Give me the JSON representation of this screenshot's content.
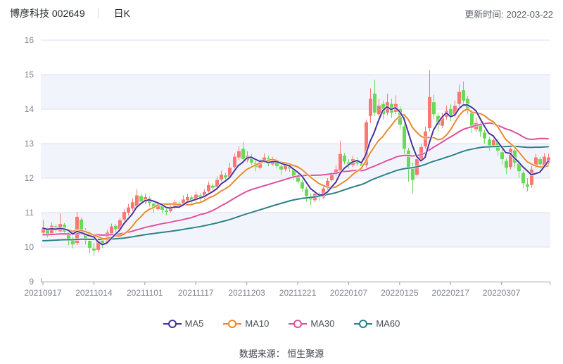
{
  "header": {
    "title": "博彦科技 002649",
    "period": "日K",
    "updated": "更新时间: 2022-03-22"
  },
  "footer": {
    "source": "数据来源： 恒生聚源"
  },
  "legend": [
    {
      "label": "MA5",
      "color": "#462f9e",
      "window": 5
    },
    {
      "label": "MA10",
      "color": "#e78930",
      "window": 10
    },
    {
      "label": "MA30",
      "color": "#dc4f9e",
      "window": 30
    },
    {
      "label": "MA60",
      "color": "#2a7f88",
      "window": 60
    }
  ],
  "chart_data": {
    "type": "candlestick",
    "title": "博彦科技 002649 日K",
    "ylim": [
      9,
      16
    ],
    "yticks": [
      9,
      10,
      11,
      12,
      13,
      14,
      15,
      16
    ],
    "xtick_indices": [
      0,
      12,
      24,
      36,
      48,
      60,
      72,
      84,
      96,
      108
    ],
    "xtick_labels": [
      "20210917",
      "20211014",
      "20211101",
      "20211117",
      "20211203",
      "20211221",
      "20220107",
      "20220125",
      "20220217",
      "20220307"
    ],
    "colors": {
      "up": "#fa7873",
      "down": "#69da55",
      "grid": "#dce1f0",
      "band": "#f2f4fb",
      "axis": "#999da4",
      "label": "#7e8494"
    },
    "ma_seed": {
      "MA30": 10.35,
      "MA60": 10.18
    },
    "candles_format": [
      "date",
      "open",
      "high",
      "low",
      "close"
    ],
    "candles": [
      [
        "20210917",
        10.42,
        10.78,
        10.35,
        10.55
      ],
      [
        "20210922",
        10.52,
        10.58,
        10.28,
        10.38
      ],
      [
        "20210923",
        10.36,
        10.72,
        10.32,
        10.62
      ],
      [
        "20210924",
        10.6,
        10.66,
        10.42,
        10.5
      ],
      [
        "20210927",
        10.46,
        10.98,
        10.42,
        10.67
      ],
      [
        "20210928",
        10.65,
        10.7,
        10.38,
        10.45
      ],
      [
        "20210929",
        10.42,
        10.48,
        10.05,
        10.2
      ],
      [
        "20210930",
        10.22,
        10.3,
        9.96,
        10.08
      ],
      [
        "20211008",
        10.12,
        11.02,
        10.06,
        10.88
      ],
      [
        "20211011",
        10.8,
        10.85,
        10.42,
        10.5
      ],
      [
        "20211012",
        10.48,
        10.55,
        10.08,
        10.2
      ],
      [
        "20211013",
        10.18,
        10.25,
        9.82,
        9.98
      ],
      [
        "20211014",
        9.96,
        10.12,
        9.75,
        9.9
      ],
      [
        "20211015",
        9.92,
        10.25,
        9.85,
        10.18
      ],
      [
        "20211018",
        10.2,
        10.28,
        9.98,
        10.1
      ],
      [
        "20211019",
        10.12,
        10.5,
        10.08,
        10.42
      ],
      [
        "20211020",
        10.4,
        10.68,
        10.35,
        10.6
      ],
      [
        "20211021",
        10.62,
        10.66,
        10.4,
        10.52
      ],
      [
        "20211022",
        10.5,
        10.85,
        10.46,
        10.78
      ],
      [
        "20211025",
        10.8,
        11.1,
        10.72,
        11.02
      ],
      [
        "20211026",
        11.0,
        11.25,
        10.92,
        11.15
      ],
      [
        "20211027",
        11.12,
        11.42,
        11.05,
        11.3
      ],
      [
        "20211028",
        11.18,
        11.68,
        11.12,
        11.5
      ],
      [
        "20211029",
        11.48,
        11.55,
        11.22,
        11.32
      ],
      [
        "20211101",
        11.3,
        11.55,
        11.25,
        11.45
      ],
      [
        "20211102",
        11.42,
        11.48,
        11.18,
        11.28
      ],
      [
        "20211103",
        11.26,
        11.32,
        11.0,
        11.12
      ],
      [
        "20211104",
        11.1,
        11.32,
        11.05,
        11.25
      ],
      [
        "20211105",
        11.22,
        11.28,
        10.98,
        11.08
      ],
      [
        "20211108",
        11.06,
        11.15,
        10.92,
        11.02
      ],
      [
        "20211109",
        11.04,
        11.25,
        11.0,
        11.18
      ],
      [
        "20211110",
        11.16,
        11.38,
        11.1,
        11.3
      ],
      [
        "20211111",
        11.28,
        11.34,
        11.12,
        11.22
      ],
      [
        "20211112",
        11.24,
        11.5,
        11.18,
        11.38
      ],
      [
        "20211115",
        11.36,
        11.55,
        11.3,
        11.45
      ],
      [
        "20211116",
        11.44,
        11.5,
        11.25,
        11.35
      ],
      [
        "20211117",
        11.36,
        11.62,
        11.3,
        11.52
      ],
      [
        "20211118",
        11.5,
        11.56,
        11.32,
        11.42
      ],
      [
        "20211119",
        11.44,
        11.68,
        11.38,
        11.6
      ],
      [
        "20211122",
        11.62,
        11.9,
        11.55,
        11.8
      ],
      [
        "20211123",
        11.78,
        11.85,
        11.6,
        11.72
      ],
      [
        "20211124",
        11.74,
        12.05,
        11.68,
        11.95
      ],
      [
        "20211125",
        11.96,
        12.22,
        11.9,
        12.1
      ],
      [
        "20211126",
        12.08,
        12.15,
        11.92,
        12.02
      ],
      [
        "20211129",
        12.04,
        12.45,
        11.98,
        12.3
      ],
      [
        "20211130",
        12.32,
        12.72,
        12.25,
        12.62
      ],
      [
        "20211201",
        12.6,
        12.92,
        12.52,
        12.78
      ],
      [
        "20211202",
        12.85,
        13.05,
        12.45,
        12.55
      ],
      [
        "20211203",
        12.52,
        12.78,
        12.46,
        12.65
      ],
      [
        "20211206",
        12.62,
        12.7,
        12.38,
        12.45
      ],
      [
        "20211207",
        12.44,
        12.52,
        12.2,
        12.32
      ],
      [
        "20211208",
        12.3,
        12.55,
        12.25,
        12.48
      ],
      [
        "20211209",
        12.46,
        12.72,
        12.42,
        12.6
      ],
      [
        "20211210",
        12.58,
        12.65,
        12.35,
        12.42
      ],
      [
        "20211213",
        12.4,
        12.62,
        12.36,
        12.55
      ],
      [
        "20211214",
        12.52,
        12.58,
        12.28,
        12.35
      ],
      [
        "20211215",
        12.34,
        12.42,
        12.1,
        12.25
      ],
      [
        "20211216",
        12.26,
        12.45,
        12.2,
        12.38
      ],
      [
        "20211217",
        12.36,
        12.42,
        12.18,
        12.28
      ],
      [
        "20211220",
        12.26,
        12.3,
        11.95,
        12.05
      ],
      [
        "20211221",
        12.02,
        12.1,
        11.82,
        11.9
      ],
      [
        "20211222",
        11.88,
        11.95,
        11.6,
        11.7
      ],
      [
        "20211223",
        11.68,
        11.75,
        11.32,
        11.48
      ],
      [
        "20211224",
        11.46,
        11.56,
        11.22,
        11.38
      ],
      [
        "20211227",
        11.36,
        11.65,
        11.3,
        11.55
      ],
      [
        "20211228",
        11.52,
        11.6,
        11.35,
        11.45
      ],
      [
        "20211229",
        11.44,
        11.78,
        11.4,
        11.7
      ],
      [
        "20211230",
        11.72,
        12.0,
        11.65,
        11.92
      ],
      [
        "20211231",
        11.94,
        12.18,
        11.88,
        12.1
      ],
      [
        "20220104",
        12.12,
        12.38,
        12.05,
        12.25
      ],
      [
        "20220105",
        12.22,
        13.08,
        12.15,
        12.7
      ],
      [
        "20220106",
        12.65,
        12.72,
        12.4,
        12.48
      ],
      [
        "20220107",
        12.46,
        12.55,
        12.28,
        12.4
      ],
      [
        "20220110",
        12.38,
        12.65,
        12.32,
        12.55
      ],
      [
        "20220111",
        12.52,
        12.6,
        12.35,
        12.42
      ],
      [
        "20220112",
        12.42,
        12.48,
        12.25,
        12.35
      ],
      [
        "20220113",
        12.38,
        13.7,
        12.3,
        13.62
      ],
      [
        "20220114",
        13.8,
        14.6,
        13.6,
        14.3
      ],
      [
        "20220117",
        14.45,
        14.85,
        13.8,
        13.9
      ],
      [
        "20220118",
        13.85,
        14.3,
        13.6,
        14.1
      ],
      [
        "20220119",
        14.15,
        14.25,
        13.7,
        13.85
      ],
      [
        "20220120",
        13.9,
        14.45,
        13.82,
        14.2
      ],
      [
        "20220121",
        14.15,
        14.3,
        13.75,
        13.9
      ],
      [
        "20220124",
        13.92,
        14.4,
        13.85,
        14.15
      ],
      [
        "20220125",
        14.0,
        14.08,
        13.4,
        13.55
      ],
      [
        "20220126",
        13.5,
        13.58,
        12.7,
        12.85
      ],
      [
        "20220127",
        12.8,
        12.88,
        11.9,
        12.25
      ],
      [
        "20220128",
        12.3,
        12.45,
        11.55,
        11.95
      ],
      [
        "20220207",
        12.1,
        12.65,
        12.05,
        12.55
      ],
      [
        "20220208",
        12.52,
        13.0,
        12.45,
        12.9
      ],
      [
        "20220209",
        12.92,
        13.5,
        12.85,
        13.35
      ],
      [
        "20220210",
        13.45,
        15.13,
        13.35,
        14.35
      ],
      [
        "20220211",
        14.2,
        14.42,
        13.7,
        13.85
      ],
      [
        "20220214",
        13.8,
        13.88,
        13.35,
        13.55
      ],
      [
        "20220215",
        13.52,
        13.9,
        13.45,
        13.75
      ],
      [
        "20220216",
        13.78,
        14.1,
        13.7,
        13.95
      ],
      [
        "20220217",
        14.0,
        14.15,
        13.65,
        13.8
      ],
      [
        "20220218",
        13.82,
        14.25,
        13.75,
        14.1
      ],
      [
        "20220221",
        14.15,
        14.72,
        14.05,
        14.5
      ],
      [
        "20220222",
        14.55,
        14.8,
        14.1,
        14.25
      ],
      [
        "20220223",
        14.3,
        14.38,
        13.85,
        13.95
      ],
      [
        "20220224",
        13.9,
        13.98,
        13.3,
        13.45
      ],
      [
        "20220225",
        13.42,
        13.75,
        13.35,
        13.6
      ],
      [
        "20220228",
        13.55,
        13.62,
        13.2,
        13.35
      ],
      [
        "20220301",
        13.32,
        13.4,
        13.0,
        13.15
      ],
      [
        "20220302",
        13.12,
        13.2,
        12.8,
        12.95
      ],
      [
        "20220303",
        12.95,
        13.25,
        12.88,
        13.1
      ],
      [
        "20220304",
        13.05,
        13.12,
        12.65,
        12.8
      ],
      [
        "20220307",
        12.75,
        12.85,
        12.4,
        12.55
      ],
      [
        "20220308",
        12.5,
        12.58,
        12.12,
        12.3
      ],
      [
        "20220309",
        12.32,
        13.05,
        12.25,
        12.85
      ],
      [
        "20220310",
        12.8,
        12.92,
        12.3,
        12.45
      ],
      [
        "20220311",
        12.42,
        12.52,
        12.0,
        12.2
      ],
      [
        "20220314",
        12.15,
        12.22,
        11.7,
        11.85
      ],
      [
        "20220315",
        11.82,
        12.0,
        11.62,
        11.75
      ],
      [
        "20220316",
        11.8,
        12.35,
        11.72,
        12.25
      ],
      [
        "20220317",
        12.35,
        12.7,
        12.28,
        12.6
      ],
      [
        "20220318",
        12.55,
        12.62,
        12.28,
        12.4
      ],
      [
        "20220321",
        12.35,
        12.72,
        12.3,
        12.62
      ],
      [
        "20220322",
        12.45,
        12.71,
        12.38,
        12.6
      ]
    ]
  }
}
